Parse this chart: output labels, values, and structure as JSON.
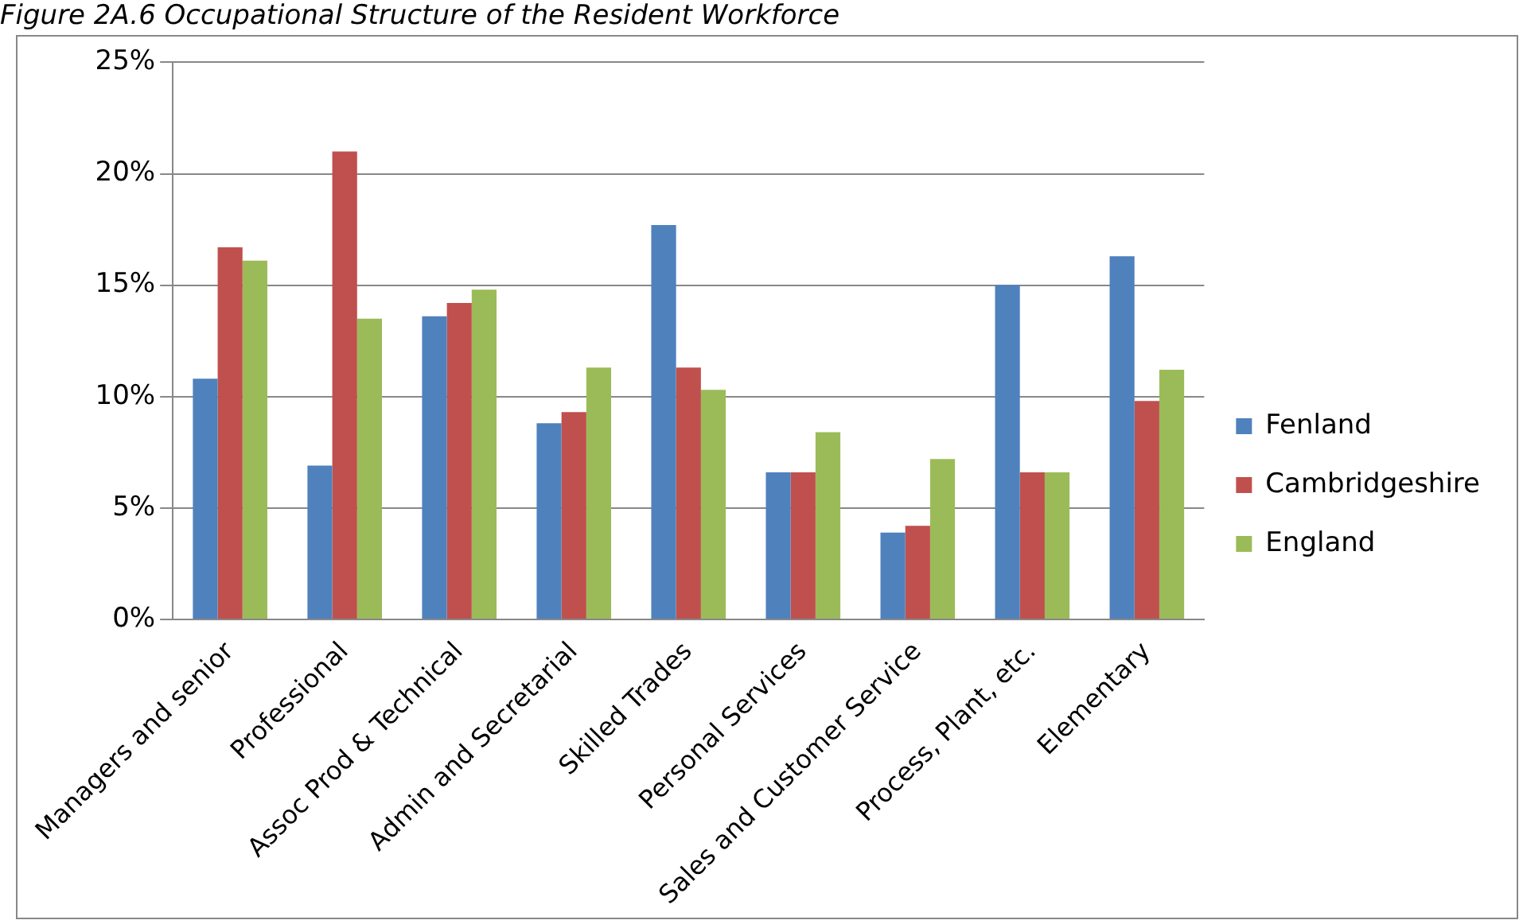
{
  "chart_data": {
    "type": "bar",
    "title": "Figure 2A.6 Occupational Structure of the Resident Workforce",
    "categories": [
      "Managers and senior",
      "Professional",
      "Assoc Prod & Technical",
      "Admin and Secretarial",
      "Skilled Trades",
      "Personal Services",
      "Sales and Customer Service",
      "Process, Plant, etc.",
      "Elementary"
    ],
    "series": [
      {
        "name": "Fenland",
        "color": "#4f81bd",
        "values": [
          10.8,
          6.9,
          13.6,
          8.8,
          17.7,
          6.6,
          3.9,
          15.0,
          16.3
        ]
      },
      {
        "name": "Cambridgeshire",
        "color": "#c0504d",
        "values": [
          16.7,
          21.0,
          14.2,
          9.3,
          11.3,
          6.6,
          4.2,
          6.6,
          9.8
        ]
      },
      {
        "name": "England",
        "color": "#9bbb59",
        "values": [
          16.1,
          13.5,
          14.8,
          11.3,
          10.3,
          8.4,
          7.2,
          6.6,
          11.2
        ]
      }
    ],
    "ylim": [
      0,
      25
    ],
    "yticks": [
      {
        "value": 0,
        "label": "0%"
      },
      {
        "value": 5,
        "label": "5%"
      },
      {
        "value": 10,
        "label": "10%"
      },
      {
        "value": 15,
        "label": "15%"
      },
      {
        "value": 20,
        "label": "20%"
      },
      {
        "value": 25,
        "label": "25%"
      }
    ],
    "grid": "y",
    "legend": "right"
  }
}
